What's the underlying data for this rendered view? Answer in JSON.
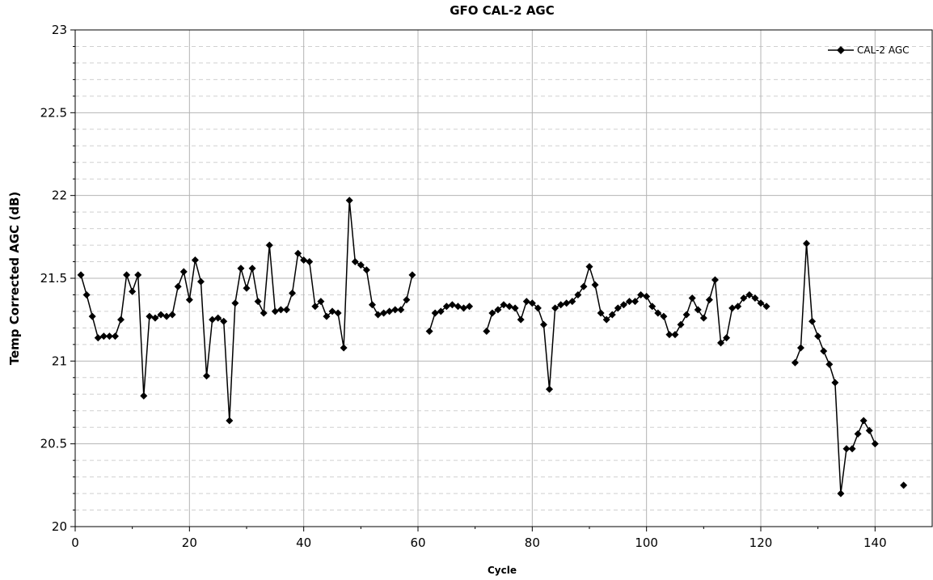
{
  "chart_data": {
    "type": "line",
    "title": "GFO CAL-2 AGC",
    "xlabel": "Cycle",
    "ylabel": "Temp Corrected AGC (dB)",
    "xlim": [
      0,
      150
    ],
    "ylim": [
      20,
      23
    ],
    "xticks": [
      0,
      20,
      40,
      60,
      80,
      100,
      120,
      140
    ],
    "yticks": [
      20,
      20.5,
      21,
      21.5,
      22,
      22.5,
      23
    ],
    "grid": true,
    "legend_position": "top-right",
    "series": [
      {
        "name": "CAL-2 AGC",
        "color": "#000000",
        "marker": "diamond",
        "points": [
          [
            1,
            21.52
          ],
          [
            2,
            21.4
          ],
          [
            3,
            21.27
          ],
          [
            4,
            21.14
          ],
          [
            5,
            21.15
          ],
          [
            6,
            21.15
          ],
          [
            7,
            21.15
          ],
          [
            8,
            21.25
          ],
          [
            9,
            21.52
          ],
          [
            10,
            21.42
          ],
          [
            11,
            21.52
          ],
          [
            12,
            20.79
          ],
          [
            13,
            21.27
          ],
          [
            14,
            21.26
          ],
          [
            15,
            21.28
          ],
          [
            16,
            21.27
          ],
          [
            17,
            21.28
          ],
          [
            18,
            21.45
          ],
          [
            19,
            21.54
          ],
          [
            20,
            21.37
          ],
          [
            21,
            21.61
          ],
          [
            22,
            21.48
          ],
          [
            23,
            20.91
          ],
          [
            24,
            21.25
          ],
          [
            25,
            21.26
          ],
          [
            26,
            21.24
          ],
          [
            27,
            20.64
          ],
          [
            28,
            21.35
          ],
          [
            29,
            21.56
          ],
          [
            30,
            21.44
          ],
          [
            31,
            21.56
          ],
          [
            32,
            21.36
          ],
          [
            33,
            21.29
          ],
          [
            34,
            21.7
          ],
          [
            35,
            21.3
          ],
          [
            36,
            21.31
          ],
          [
            37,
            21.31
          ],
          [
            38,
            21.41
          ],
          [
            39,
            21.65
          ],
          [
            40,
            21.61
          ],
          [
            41,
            21.6
          ],
          [
            42,
            21.33
          ],
          [
            43,
            21.36
          ],
          [
            44,
            21.27
          ],
          [
            45,
            21.3
          ],
          [
            46,
            21.29
          ],
          [
            47,
            21.08
          ],
          [
            48,
            21.97
          ],
          [
            49,
            21.6
          ],
          [
            50,
            21.58
          ],
          [
            51,
            21.55
          ],
          [
            52,
            21.34
          ],
          [
            53,
            21.28
          ],
          [
            54,
            21.29
          ],
          [
            55,
            21.3
          ],
          [
            56,
            21.31
          ],
          [
            57,
            21.31
          ],
          [
            58,
            21.37
          ],
          [
            59,
            21.52
          ],
          [
            62,
            21.18
          ],
          [
            63,
            21.29
          ],
          [
            64,
            21.3
          ],
          [
            65,
            21.33
          ],
          [
            66,
            21.34
          ],
          [
            67,
            21.33
          ],
          [
            68,
            21.32
          ],
          [
            69,
            21.33
          ],
          [
            72,
            21.18
          ],
          [
            73,
            21.29
          ],
          [
            74,
            21.31
          ],
          [
            75,
            21.34
          ],
          [
            76,
            21.33
          ],
          [
            77,
            21.32
          ],
          [
            78,
            21.25
          ],
          [
            79,
            21.36
          ],
          [
            80,
            21.35
          ],
          [
            81,
            21.32
          ],
          [
            82,
            21.22
          ],
          [
            83,
            20.83
          ],
          [
            84,
            21.32
          ],
          [
            85,
            21.34
          ],
          [
            86,
            21.35
          ],
          [
            87,
            21.36
          ],
          [
            88,
            21.4
          ],
          [
            89,
            21.45
          ],
          [
            90,
            21.57
          ],
          [
            91,
            21.46
          ],
          [
            92,
            21.29
          ],
          [
            93,
            21.25
          ],
          [
            94,
            21.28
          ],
          [
            95,
            21.32
          ],
          [
            96,
            21.34
          ],
          [
            97,
            21.36
          ],
          [
            98,
            21.36
          ],
          [
            99,
            21.4
          ],
          [
            100,
            21.39
          ],
          [
            101,
            21.33
          ],
          [
            102,
            21.29
          ],
          [
            103,
            21.27
          ],
          [
            104,
            21.16
          ],
          [
            105,
            21.16
          ],
          [
            106,
            21.22
          ],
          [
            107,
            21.28
          ],
          [
            108,
            21.38
          ],
          [
            109,
            21.31
          ],
          [
            110,
            21.26
          ],
          [
            111,
            21.37
          ],
          [
            112,
            21.49
          ],
          [
            113,
            21.11
          ],
          [
            114,
            21.14
          ],
          [
            115,
            21.32
          ],
          [
            116,
            21.33
          ],
          [
            117,
            21.38
          ],
          [
            118,
            21.4
          ],
          [
            119,
            21.38
          ],
          [
            120,
            21.35
          ],
          [
            121,
            21.33
          ],
          [
            126,
            20.99
          ],
          [
            127,
            21.08
          ],
          [
            128,
            21.71
          ],
          [
            129,
            21.24
          ],
          [
            130,
            21.15
          ],
          [
            131,
            21.06
          ],
          [
            132,
            20.98
          ],
          [
            133,
            20.87
          ],
          [
            134,
            20.2
          ],
          [
            135,
            20.47
          ],
          [
            136,
            20.47
          ],
          [
            137,
            20.56
          ],
          [
            138,
            20.64
          ],
          [
            139,
            20.58
          ],
          [
            140,
            20.5
          ],
          [
            145,
            20.25
          ]
        ]
      }
    ]
  }
}
